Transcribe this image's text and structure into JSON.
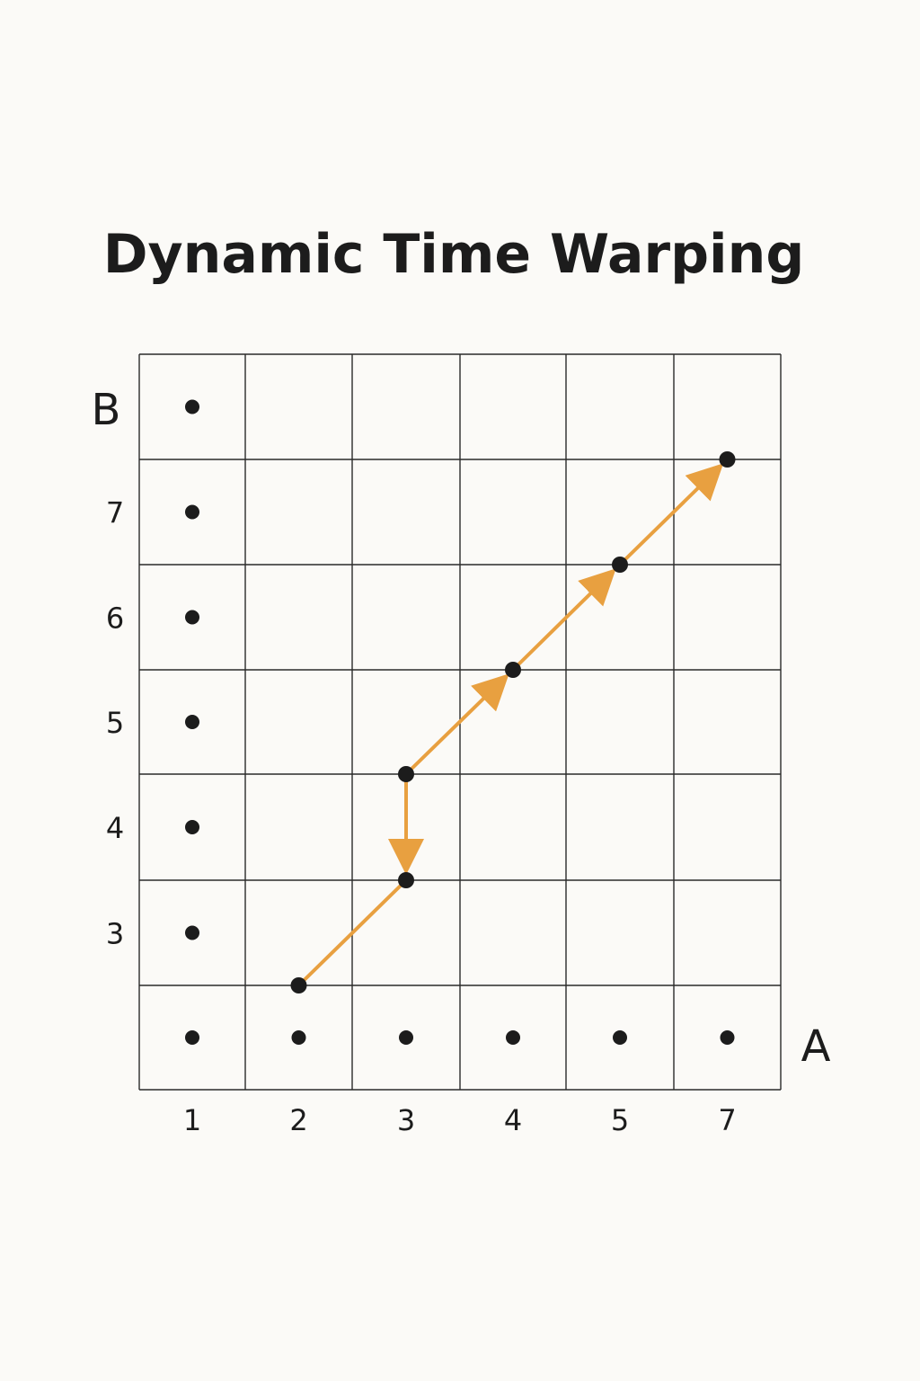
{
  "title": "Dynamic Time Warping",
  "axes": {
    "x_name": "A",
    "y_name": "B",
    "x_ticks": [
      "1",
      "2",
      "3",
      "4",
      "5",
      "7"
    ],
    "y_ticks": [
      "3",
      "4",
      "5",
      "6",
      "7"
    ]
  },
  "colors": {
    "background": "#fbfaf7",
    "grid": "#2a2a2a",
    "point": "#1c1c1c",
    "path": "#e8a040"
  },
  "sequence_points": {
    "a_sequence_columns": [
      0,
      1,
      2,
      3,
      4,
      5
    ],
    "b_sequence_rows": [
      0,
      1,
      2,
      3,
      4,
      5,
      6
    ]
  },
  "warping_path": {
    "nodes": [
      {
        "col": 1.5,
        "row": 1
      },
      {
        "col": 2.5,
        "row": 2
      },
      {
        "col": 2.5,
        "row": 3
      },
      {
        "col": 3.5,
        "row": 4
      },
      {
        "col": 4.5,
        "row": 5
      },
      {
        "col": 5.5,
        "row": 6
      }
    ],
    "arrows": [
      {
        "from": 0,
        "to": 1,
        "arrowhead": false
      },
      {
        "from": 2,
        "to": 1,
        "arrowhead": true
      },
      {
        "from": 2,
        "to": 3,
        "arrowhead": true
      },
      {
        "from": 3,
        "to": 4,
        "arrowhead": true
      },
      {
        "from": 4,
        "to": 5,
        "arrowhead": true
      }
    ]
  }
}
